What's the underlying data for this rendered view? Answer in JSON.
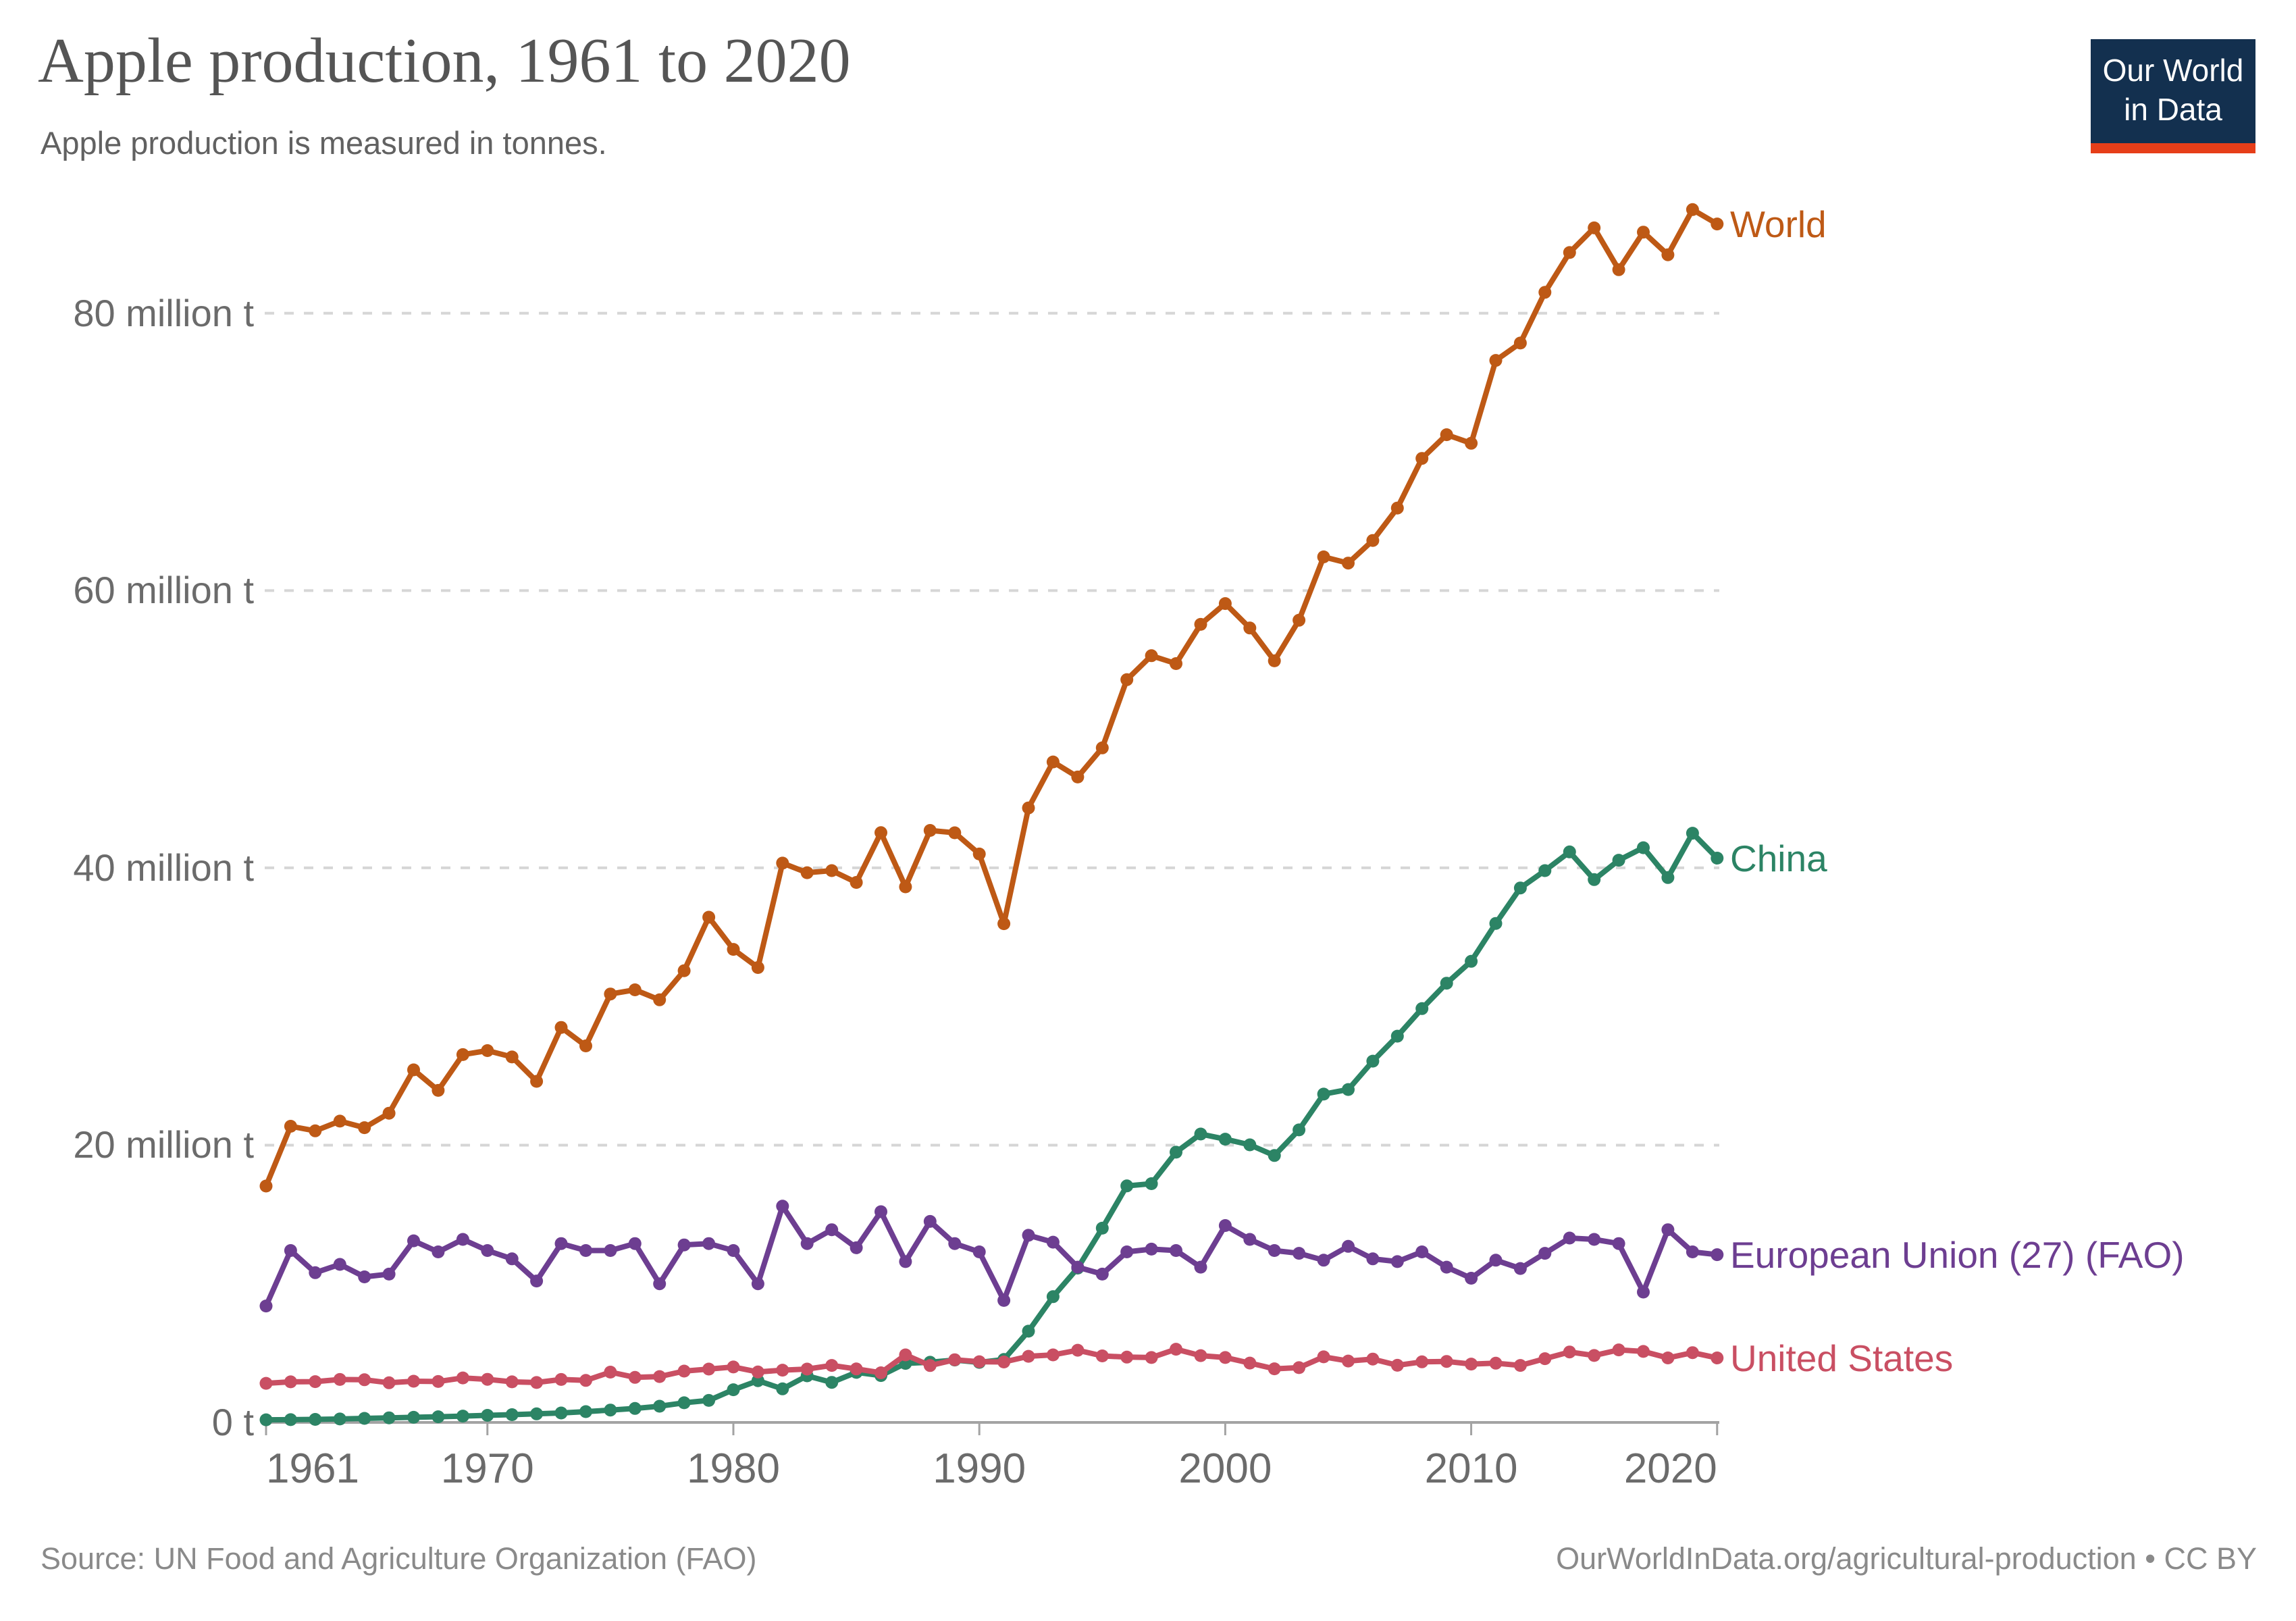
{
  "header": {
    "title": "Apple production, 1961 to 2020",
    "subtitle": "Apple production is measured in tonnes."
  },
  "logo": {
    "line1": "Our World",
    "line2": "in Data",
    "bg_color": "#13304F",
    "accent_color": "#E63E19",
    "text_color": "#FFFFFF"
  },
  "footer": {
    "source": "Source: UN Food and Agriculture Organization (FAO)",
    "license": "OurWorldInData.org/agricultural-production • CC BY"
  },
  "chart_data": {
    "type": "line",
    "title": "Apple production, 1961 to 2020",
    "subtitle": "Apple production is measured in tonnes.",
    "values_unit": "million tonnes",
    "grid": "horizontal dashed",
    "legend_position": "labels right of line ends",
    "ylim": [
      0,
      88
    ],
    "x_ticks": [
      1961,
      1970,
      1980,
      1990,
      2000,
      2010,
      2020
    ],
    "y_ticks": [
      {
        "value": 0,
        "label": "0 t"
      },
      {
        "value": 20,
        "label": "20 million t"
      },
      {
        "value": 40,
        "label": "40 million t"
      },
      {
        "value": 60,
        "label": "60 million t"
      },
      {
        "value": 80,
        "label": "80 million t"
      }
    ],
    "x": [
      1961,
      1962,
      1963,
      1964,
      1965,
      1966,
      1967,
      1968,
      1969,
      1970,
      1971,
      1972,
      1973,
      1974,
      1975,
      1976,
      1977,
      1978,
      1979,
      1980,
      1981,
      1982,
      1983,
      1984,
      1985,
      1986,
      1987,
      1988,
      1989,
      1990,
      1991,
      1992,
      1993,
      1994,
      1995,
      1996,
      1997,
      1998,
      1999,
      2000,
      2001,
      2002,
      2003,
      2004,
      2005,
      2006,
      2007,
      2008,
      2009,
      2010,
      2011,
      2012,
      2013,
      2014,
      2015,
      2016,
      2017,
      2018,
      2019,
      2020
    ],
    "series": [
      {
        "name": "World",
        "color": "#BE5915",
        "values": [
          17.05,
          21.36,
          21.03,
          21.73,
          21.26,
          22.3,
          25.43,
          23.95,
          26.53,
          26.82,
          26.36,
          24.6,
          28.49,
          27.16,
          30.9,
          31.2,
          30.48,
          32.58,
          36.44,
          34.12,
          32.81,
          40.34,
          39.65,
          39.8,
          38.95,
          42.54,
          38.63,
          42.7,
          42.53,
          41.0,
          35.97,
          44.32,
          47.64,
          46.55,
          48.65,
          53.57,
          55.3,
          54.73,
          57.56,
          59.06,
          57.3,
          54.93,
          57.86,
          62.43,
          61.98,
          63.61,
          65.95,
          69.53,
          71.24,
          70.62,
          76.6,
          77.85,
          81.51,
          84.38,
          86.16,
          83.14,
          85.85,
          84.22,
          87.48,
          86.44
        ]
      },
      {
        "name": "China",
        "color": "#2C8465",
        "values": [
          0.19,
          0.2,
          0.22,
          0.25,
          0.29,
          0.33,
          0.37,
          0.41,
          0.46,
          0.51,
          0.56,
          0.62,
          0.68,
          0.78,
          0.89,
          1.01,
          1.17,
          1.42,
          1.59,
          2.36,
          3.01,
          2.42,
          3.36,
          2.89,
          3.61,
          3.38,
          4.26,
          4.34,
          4.5,
          4.33,
          4.54,
          6.58,
          9.07,
          11.13,
          14.01,
          17.06,
          17.22,
          19.49,
          20.8,
          20.43,
          20.02,
          19.25,
          21.1,
          23.68,
          24.01,
          26.06,
          27.86,
          29.85,
          31.68,
          33.26,
          35.99,
          38.55,
          39.8,
          41.15,
          39.15,
          40.55,
          41.45,
          39.3,
          42.5,
          40.7
        ]
      },
      {
        "name": "European Union (27) (FAO)",
        "color": "#6D3E91",
        "values": [
          8.4,
          12.4,
          10.8,
          11.4,
          10.5,
          10.7,
          13.1,
          12.3,
          13.2,
          12.4,
          11.8,
          10.2,
          12.9,
          12.4,
          12.4,
          12.9,
          10.0,
          12.8,
          12.9,
          12.4,
          10.0,
          15.6,
          12.9,
          13.9,
          12.6,
          15.2,
          11.6,
          14.5,
          12.9,
          12.3,
          8.8,
          13.5,
          13.0,
          11.2,
          10.7,
          12.3,
          12.5,
          12.4,
          11.2,
          14.2,
          13.2,
          12.4,
          12.2,
          11.7,
          12.7,
          11.8,
          11.6,
          12.3,
          11.2,
          10.4,
          11.7,
          11.1,
          12.2,
          13.3,
          13.2,
          12.9,
          9.4,
          13.9,
          12.3,
          12.1
        ]
      },
      {
        "name": "United States",
        "color": "#C94F63",
        "values": [
          2.82,
          2.93,
          2.94,
          3.1,
          3.08,
          2.86,
          2.97,
          2.95,
          3.21,
          3.11,
          2.93,
          2.88,
          3.1,
          3.03,
          3.63,
          3.25,
          3.31,
          3.7,
          3.85,
          4.0,
          3.64,
          3.77,
          3.85,
          4.11,
          3.86,
          3.58,
          4.87,
          4.1,
          4.52,
          4.38,
          4.36,
          4.77,
          4.87,
          5.21,
          4.8,
          4.71,
          4.68,
          5.28,
          4.82,
          4.68,
          4.28,
          3.87,
          3.95,
          4.73,
          4.43,
          4.57,
          4.12,
          4.37,
          4.4,
          4.21,
          4.27,
          4.11,
          4.6,
          5.08,
          4.83,
          5.23,
          5.12,
          4.65,
          5.03,
          4.65
        ]
      }
    ]
  }
}
